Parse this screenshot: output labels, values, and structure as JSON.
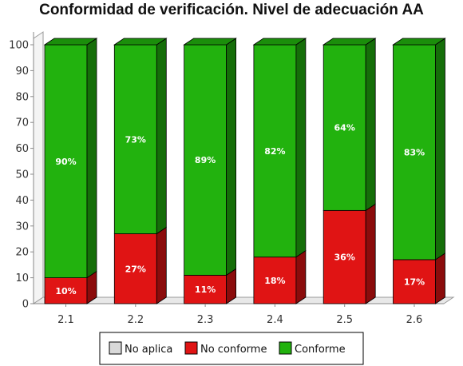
{
  "chart_data": {
    "type": "bar",
    "stacked": true,
    "three_d": true,
    "title": "Conformidad de verificación. Nivel de adecuación AA",
    "categories": [
      "2.1",
      "2.2",
      "2.3",
      "2.4",
      "2.5",
      "2.6"
    ],
    "series": [
      {
        "name": "No aplica",
        "color": "#d9d9d9",
        "values": [
          0,
          0,
          0,
          0,
          0,
          0
        ],
        "labels": [
          "",
          "",
          "",
          "",
          "",
          ""
        ]
      },
      {
        "name": "No conforme",
        "color": "#e01414",
        "values": [
          10,
          27,
          11,
          18,
          36,
          17
        ],
        "labels": [
          "10%",
          "27%",
          "11%",
          "18%",
          "36%",
          "17%"
        ]
      },
      {
        "name": "Conforme",
        "color": "#22b20e",
        "values": [
          90,
          73,
          89,
          82,
          64,
          83
        ],
        "labels": [
          "90%",
          "73%",
          "89%",
          "82%",
          "64%",
          "83%"
        ]
      }
    ],
    "ylim": [
      0,
      100
    ],
    "yticks": [
      "0",
      "10",
      "20",
      "30",
      "40",
      "50",
      "60",
      "70",
      "80",
      "90",
      "100"
    ],
    "grid": false,
    "legend_position": "bottom"
  }
}
